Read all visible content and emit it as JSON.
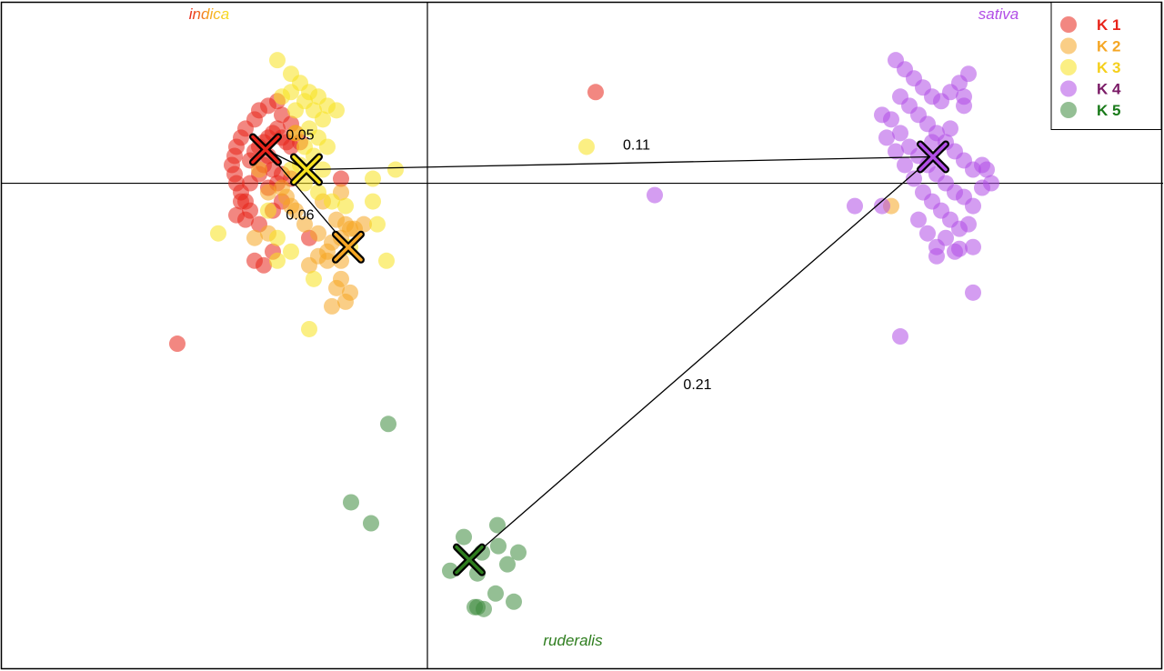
{
  "chart_data": {
    "type": "scatter",
    "title": "",
    "xlabel": "",
    "ylabel": "",
    "xlim": [
      -470,
      810
    ],
    "ylim": [
      -535,
      201
    ],
    "axes_lines": {
      "x": 0,
      "y": 0
    },
    "grid": false,
    "legend_position": "top-right",
    "group_labels": [
      {
        "text": "indica",
        "x": -240,
        "y": 180,
        "gradient": [
          "#e8241a",
          "#f5a623",
          "#f7e11e"
        ]
      },
      {
        "text": "sativa",
        "x": 628,
        "y": 180,
        "color": "#b14de6"
      },
      {
        "text": "ruderalis",
        "x": 160,
        "y": -507,
        "color": "#2e7d1e"
      }
    ],
    "series": [
      {
        "name": "K 1",
        "color": "#e8241a",
        "label_color": "#e8241a",
        "points": [
          [
            -195,
            25
          ],
          [
            -190,
            35
          ],
          [
            -185,
            40
          ],
          [
            -180,
            45
          ],
          [
            -175,
            50
          ],
          [
            -170,
            55
          ],
          [
            -165,
            60
          ],
          [
            -160,
            50
          ],
          [
            -155,
            45
          ],
          [
            -150,
            40
          ],
          [
            -200,
            60
          ],
          [
            -205,
            50
          ],
          [
            -210,
            40
          ],
          [
            -212,
            30
          ],
          [
            -215,
            20
          ],
          [
            -212,
            10
          ],
          [
            -210,
            0
          ],
          [
            -205,
            -10
          ],
          [
            -200,
            -20
          ],
          [
            -195,
            -30
          ],
          [
            -190,
            70
          ],
          [
            -185,
            80
          ],
          [
            -175,
            85
          ],
          [
            -165,
            90
          ],
          [
            -160,
            75
          ],
          [
            -150,
            65
          ],
          [
            -145,
            55
          ],
          [
            -140,
            45
          ],
          [
            -175,
            30
          ],
          [
            -180,
            20
          ],
          [
            -170,
            15
          ],
          [
            -160,
            10
          ],
          [
            -150,
            5
          ],
          [
            -165,
            0
          ],
          [
            -175,
            -5
          ],
          [
            -185,
            10
          ],
          [
            -195,
            0
          ],
          [
            -205,
            -20
          ],
          [
            -210,
            -35
          ],
          [
            -200,
            -40
          ],
          [
            -185,
            -45
          ],
          [
            -170,
            -30
          ],
          [
            -160,
            -20
          ],
          [
            -190,
            -85
          ],
          [
            -180,
            -90
          ],
          [
            -170,
            -75
          ],
          [
            -130,
            -60
          ],
          [
            -95,
            5
          ],
          [
            -275,
            -176
          ],
          [
            185,
            100
          ]
        ]
      },
      {
        "name": "K 2",
        "color": "#f5a623",
        "label_color": "#f5a623",
        "points": [
          [
            -160,
            -5
          ],
          [
            -155,
            -15
          ],
          [
            -145,
            -30
          ],
          [
            -135,
            -45
          ],
          [
            -120,
            -55
          ],
          [
            -105,
            -65
          ],
          [
            -95,
            -60
          ],
          [
            -85,
            -50
          ],
          [
            -90,
            -45
          ],
          [
            -100,
            -40
          ],
          [
            -110,
            -75
          ],
          [
            -95,
            -105
          ],
          [
            -100,
            -115
          ],
          [
            -85,
            -120
          ],
          [
            -90,
            -130
          ],
          [
            -105,
            -135
          ],
          [
            -185,
            15
          ],
          [
            -175,
            -10
          ],
          [
            -120,
            -80
          ],
          [
            -70,
            -45
          ],
          [
            -115,
            -20
          ],
          [
            -95,
            -10
          ],
          [
            -80,
            -50
          ],
          [
            -95,
            -85
          ],
          [
            510,
            -25
          ],
          [
            -175,
            -55
          ],
          [
            -190,
            -60
          ],
          [
            -150,
            -25
          ],
          [
            -110,
            -85
          ],
          [
            -130,
            -90
          ]
        ]
      },
      {
        "name": "K 3",
        "color": "#f7e11e",
        "label_color": "#f5cf1b",
        "points": [
          [
            -165,
            135
          ],
          [
            -150,
            120
          ],
          [
            -140,
            110
          ],
          [
            -130,
            100
          ],
          [
            -120,
            95
          ],
          [
            -110,
            85
          ],
          [
            -100,
            80
          ],
          [
            -135,
            90
          ],
          [
            -125,
            80
          ],
          [
            -115,
            70
          ],
          [
            -150,
            100
          ],
          [
            -160,
            95
          ],
          [
            -145,
            80
          ],
          [
            -130,
            60
          ],
          [
            -120,
            50
          ],
          [
            -110,
            40
          ],
          [
            -125,
            30
          ],
          [
            -140,
            20
          ],
          [
            -150,
            15
          ],
          [
            -135,
            0
          ],
          [
            -120,
            -10
          ],
          [
            -105,
            -20
          ],
          [
            -90,
            -25
          ],
          [
            -60,
            5
          ],
          [
            -35,
            15
          ],
          [
            -60,
            -20
          ],
          [
            -55,
            -45
          ],
          [
            -85,
            -70
          ],
          [
            -45,
            -85
          ],
          [
            -130,
            -160
          ],
          [
            -230,
            -55
          ],
          [
            -150,
            -75
          ],
          [
            -165,
            -85
          ],
          [
            -125,
            -105
          ],
          [
            -165,
            -60
          ],
          [
            -175,
            -30
          ],
          [
            175,
            40
          ],
          [
            -145,
            55
          ],
          [
            -135,
            40
          ],
          [
            -115,
            15
          ]
        ]
      },
      {
        "name": "K 4",
        "color": "#b14de6",
        "label_color": "#7a1a66",
        "points": [
          [
            515,
            135
          ],
          [
            525,
            125
          ],
          [
            535,
            115
          ],
          [
            545,
            105
          ],
          [
            555,
            95
          ],
          [
            565,
            90
          ],
          [
            575,
            100
          ],
          [
            585,
            110
          ],
          [
            595,
            120
          ],
          [
            590,
            95
          ],
          [
            520,
            95
          ],
          [
            530,
            85
          ],
          [
            540,
            75
          ],
          [
            550,
            65
          ],
          [
            560,
            55
          ],
          [
            570,
            45
          ],
          [
            580,
            35
          ],
          [
            590,
            25
          ],
          [
            600,
            15
          ],
          [
            610,
            20
          ],
          [
            510,
            70
          ],
          [
            520,
            55
          ],
          [
            530,
            40
          ],
          [
            540,
            30
          ],
          [
            550,
            20
          ],
          [
            560,
            10
          ],
          [
            570,
            0
          ],
          [
            580,
            -10
          ],
          [
            590,
            -15
          ],
          [
            600,
            -25
          ],
          [
            500,
            75
          ],
          [
            505,
            50
          ],
          [
            515,
            35
          ],
          [
            525,
            20
          ],
          [
            535,
            5
          ],
          [
            545,
            -10
          ],
          [
            555,
            -20
          ],
          [
            565,
            -30
          ],
          [
            575,
            -40
          ],
          [
            585,
            -50
          ],
          [
            540,
            -40
          ],
          [
            550,
            -55
          ],
          [
            560,
            -70
          ],
          [
            570,
            -60
          ],
          [
            580,
            -75
          ],
          [
            595,
            -45
          ],
          [
            600,
            -70
          ],
          [
            610,
            -5
          ],
          [
            615,
            15
          ],
          [
            620,
            0
          ],
          [
            470,
            -25
          ],
          [
            500,
            -25
          ],
          [
            560,
            -80
          ],
          [
            585,
            -72
          ],
          [
            600,
            -120
          ],
          [
            520,
            -168
          ],
          [
            250,
            -13
          ],
          [
            590,
            85
          ],
          [
            575,
            60
          ],
          [
            555,
            45
          ]
        ]
      },
      {
        "name": "K 5",
        "color": "#3d8b3d",
        "label_color": "#1a7a1a",
        "points": [
          [
            -43,
            -264
          ],
          [
            -84,
            -350
          ],
          [
            -62,
            -373
          ],
          [
            40,
            -388
          ],
          [
            77,
            -375
          ],
          [
            60,
            -405
          ],
          [
            78,
            -398
          ],
          [
            100,
            -405
          ],
          [
            88,
            -418
          ],
          [
            25,
            -425
          ],
          [
            55,
            -428
          ],
          [
            75,
            -450
          ],
          [
            95,
            -459
          ],
          [
            55,
            -465
          ],
          [
            62,
            -467
          ],
          [
            52,
            -465
          ]
        ]
      }
    ],
    "centroids": [
      {
        "name": "K 1",
        "x": -178,
        "y": 37,
        "color": "#e8241a"
      },
      {
        "name": "K 3",
        "x": -133,
        "y": 15,
        "color": "#f7e11e"
      },
      {
        "name": "K 2",
        "x": -87,
        "y": -70,
        "color": "#f5a623"
      },
      {
        "name": "K 4",
        "x": 556,
        "y": 29,
        "color": "#b14de6"
      },
      {
        "name": "K 5",
        "x": 46,
        "y": -413,
        "color": "#2e7d1e"
      }
    ],
    "distances": [
      {
        "from": "K 1",
        "to": "K 3",
        "value": "0.05",
        "lx": -140,
        "ly": 48
      },
      {
        "from": "K 1",
        "to": "K 2",
        "value": "0.06",
        "lx": -140,
        "ly": -40
      },
      {
        "from": "K 3",
        "to": "K 4",
        "value": "0.11",
        "lx": 230,
        "ly": 37
      },
      {
        "from": "K 4",
        "to": "K 5",
        "value": "0.21",
        "lx": 297,
        "ly": -226
      }
    ]
  }
}
